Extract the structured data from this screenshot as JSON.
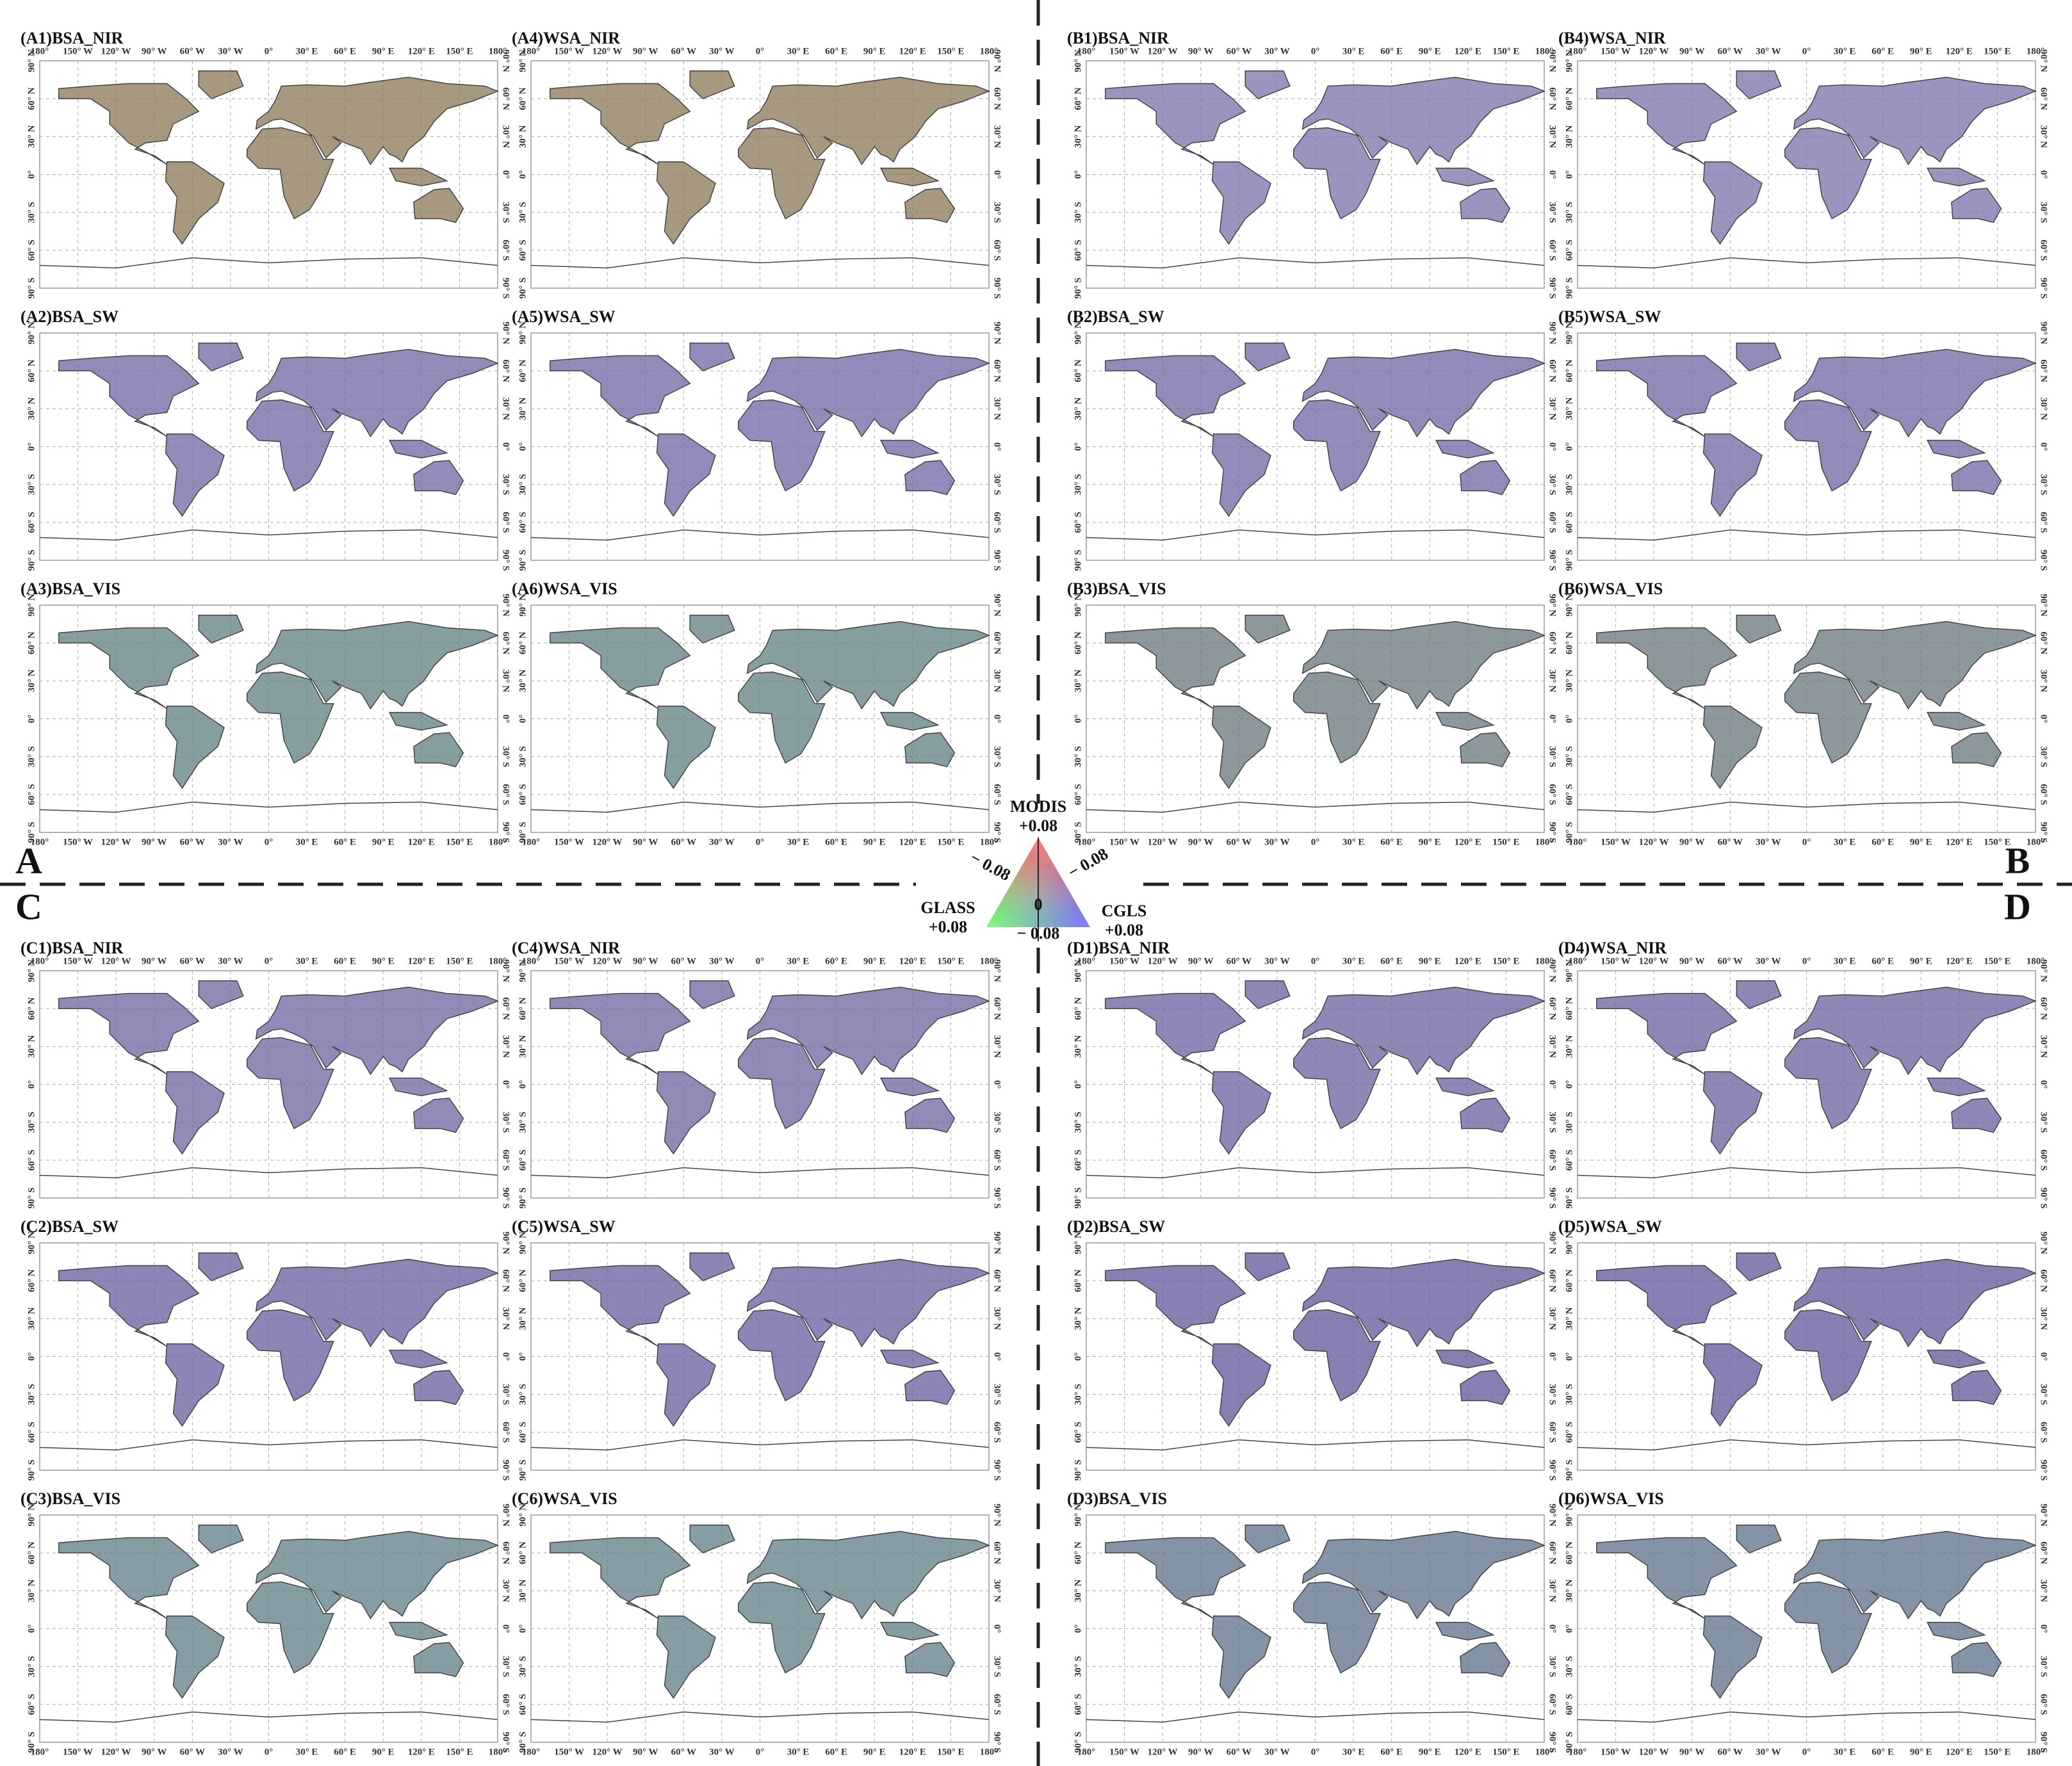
{
  "quadrants": [
    {
      "letter": "A",
      "panels": [
        "(A1)BSA_NIR",
        "(A2)BSA_SW",
        "(A3)BSA_VIS",
        "(A4)WSA_NIR",
        "(A5)WSA_SW",
        "(A6)WSA_VIS"
      ]
    },
    {
      "letter": "B",
      "panels": [
        "(B1)BSA_NIR",
        "(B2)BSA_SW",
        "(B3)BSA_VIS",
        "(B4)WSA_NIR",
        "(B5)WSA_SW",
        "(B6)WSA_VIS"
      ]
    },
    {
      "letter": "C",
      "panels": [
        "(C1)BSA_NIR",
        "(C2)BSA_SW",
        "(C3)BSA_VIS",
        "(C4)WSA_NIR",
        "(C5)WSA_SW",
        "(C6)WSA_VIS"
      ]
    },
    {
      "letter": "D",
      "panels": [
        "(D1)BSA_NIR",
        "(D2)BSA_SW",
        "(D3)BSA_VIS",
        "(D4)WSA_NIR",
        "(D5)WSA_SW",
        "(D6)WSA_VIS"
      ]
    }
  ],
  "lon_labels": [
    "180°",
    "150° W",
    "120° W",
    "90° W",
    "60° W",
    "30° W",
    "0°",
    "30° E",
    "60° E",
    "90° E",
    "120° E",
    "150° E",
    "180°"
  ],
  "lat_labels": [
    "90° N",
    "60° N",
    "30° N",
    "0°",
    "30° S",
    "60° S",
    "90° S"
  ],
  "legend": {
    "top_label": "MODIS",
    "top_value": "+0.08",
    "left_label": "GLASS",
    "left_value": "+0.08",
    "right_label": "CGLS",
    "right_value": "+0.08",
    "center": "0",
    "edge_left": "− 0.08",
    "edge_right": "− 0.08",
    "edge_bottom": "− 0.08"
  }
}
